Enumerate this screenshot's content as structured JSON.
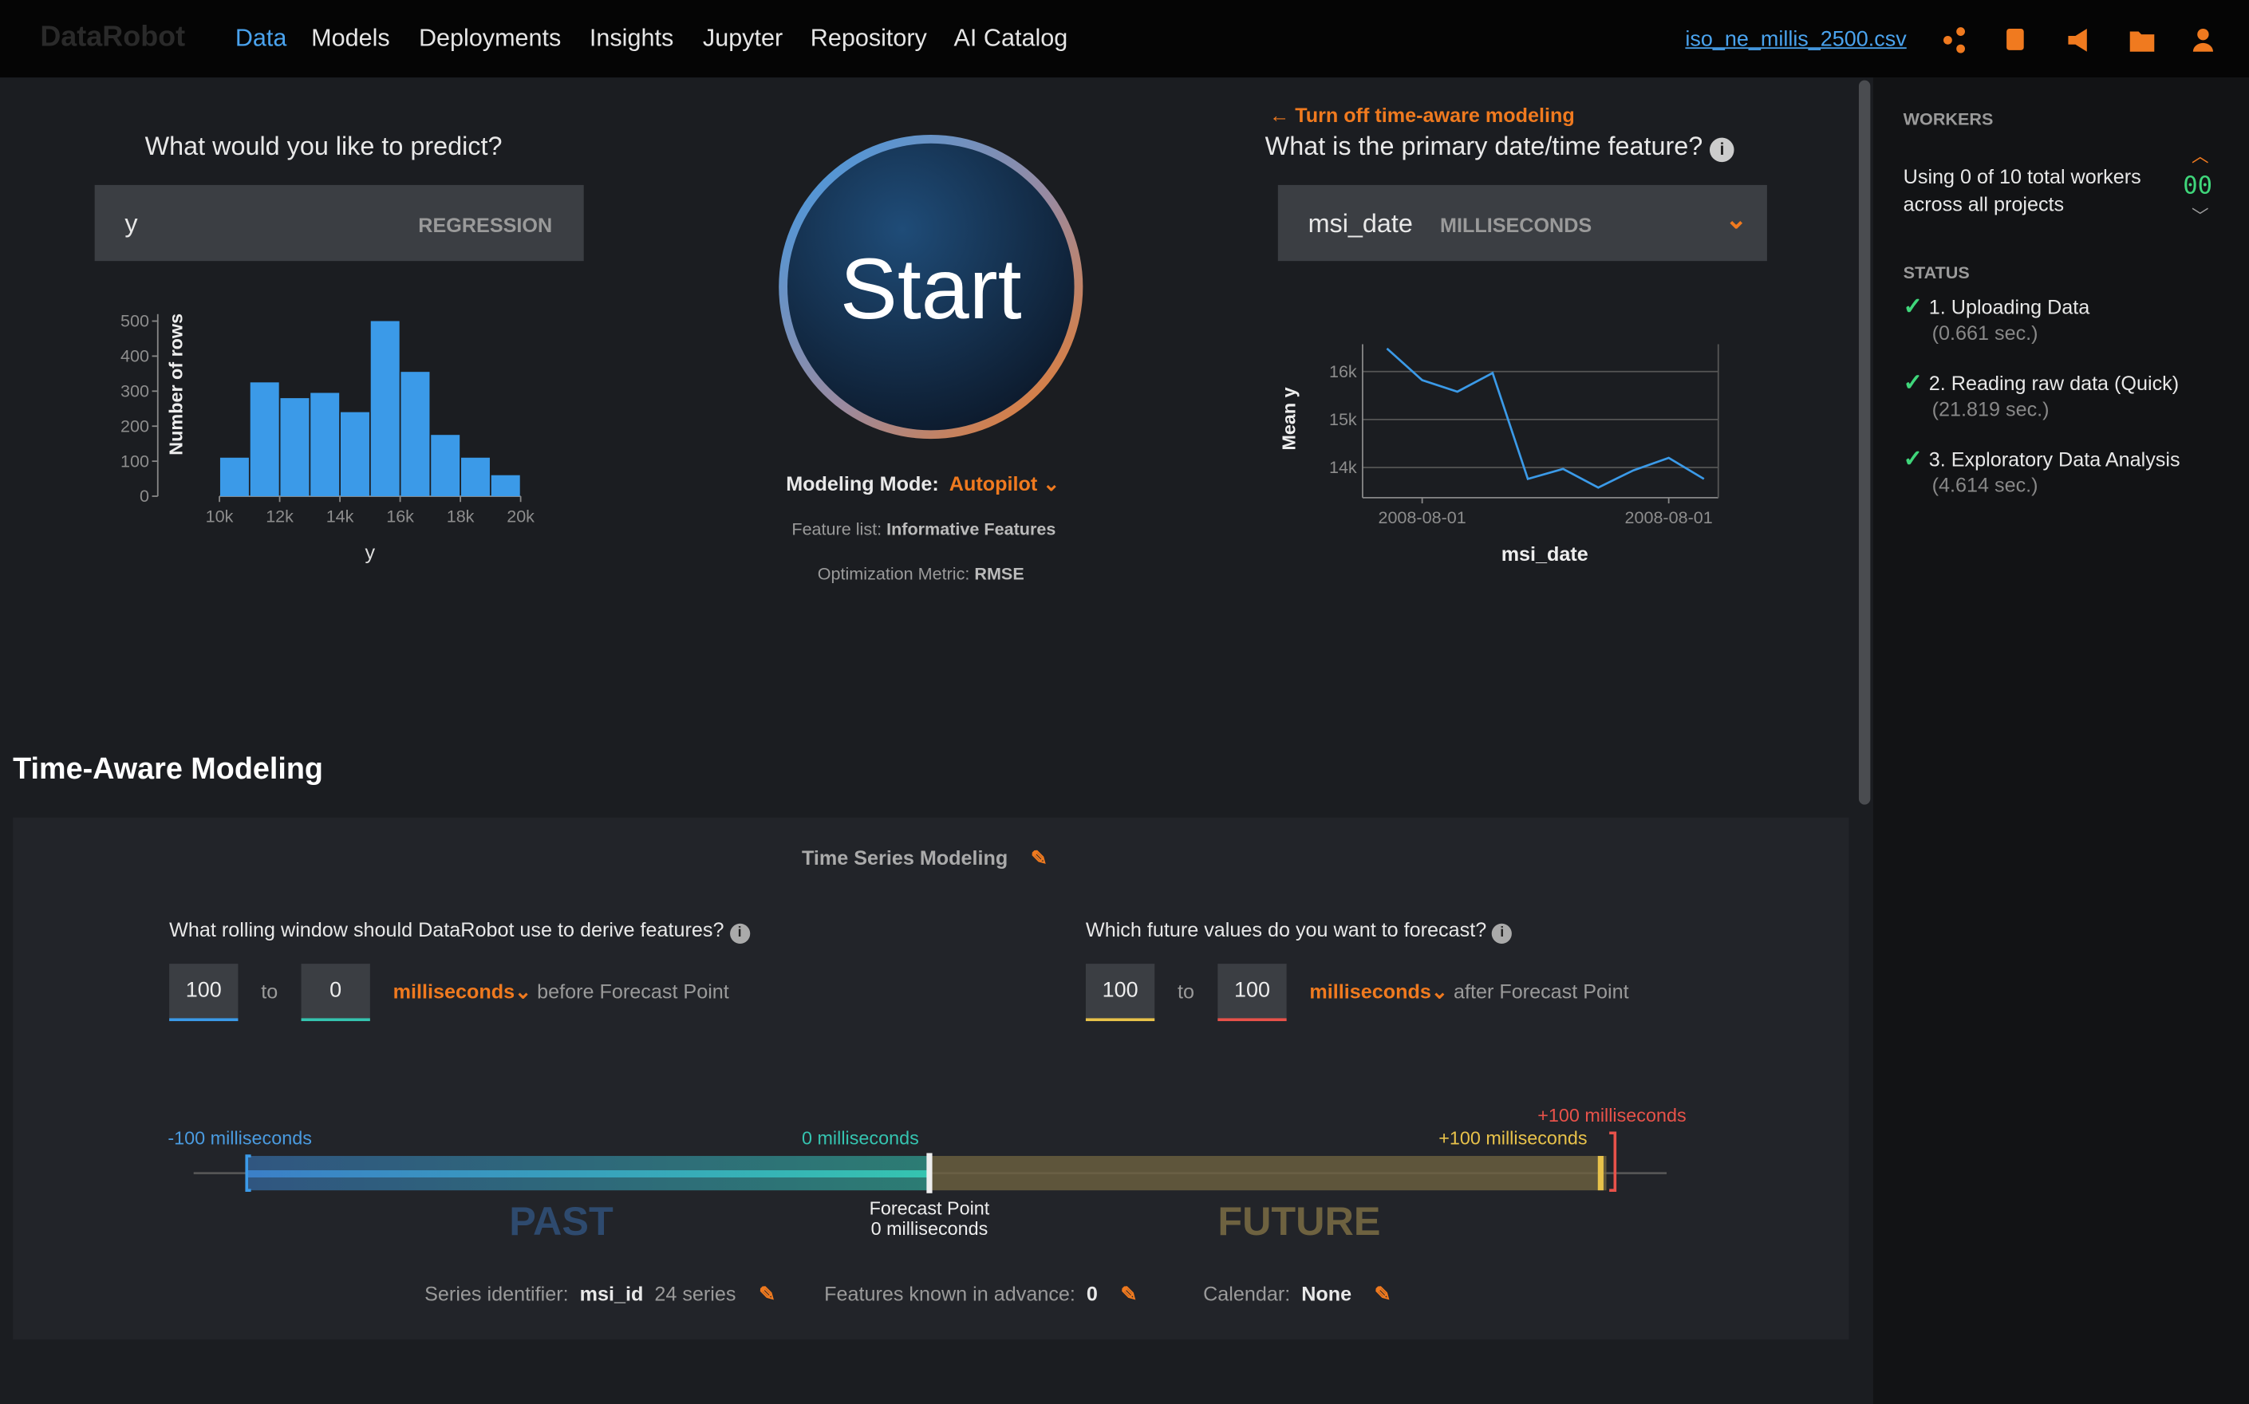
{
  "nav": {
    "logo": "DataRobot",
    "items": [
      "Data",
      "Models",
      "Deployments",
      "Insights",
      "Jupyter",
      "Repository",
      "AI Catalog"
    ],
    "file": "iso_ne_millis_2500.csv"
  },
  "target": {
    "question": "What would you like to predict?",
    "value": "y",
    "kind": "REGRESSION"
  },
  "start": {
    "label": "Start",
    "mode_label": "Modeling Mode:",
    "mode": "Autopilot",
    "feature_list_label": "Feature list:",
    "feature_list": "Informative Features",
    "metric_label": "Optimization Metric:",
    "metric": "RMSE"
  },
  "datetime": {
    "turn_off": "Turn off time-aware modeling",
    "question": "What is the primary date/time feature?",
    "value": "msi_date",
    "unit": "MILLISECONDS"
  },
  "chart_data": [
    {
      "type": "histogram",
      "x_label": "y",
      "y_label": "Number of rows",
      "color": "#3b9ae8",
      "bins": [
        10000,
        11000,
        12000,
        13000,
        14000,
        15000,
        16000,
        17000,
        18000,
        19000,
        20000
      ],
      "values": [
        110,
        325,
        280,
        295,
        240,
        500,
        355,
        175,
        110,
        60
      ],
      "xlim": [
        10000,
        20000
      ],
      "xticks": [
        {
          "value": 10000,
          "label": "10k"
        },
        {
          "value": 12000,
          "label": "12k"
        },
        {
          "value": 14000,
          "label": "14k"
        },
        {
          "value": 16000,
          "label": "16k"
        },
        {
          "value": 18000,
          "label": "18k"
        },
        {
          "value": 20000,
          "label": "20k"
        }
      ],
      "ylim": [
        0,
        520
      ],
      "yticks": [
        0,
        100,
        200,
        300,
        400,
        500
      ]
    },
    {
      "type": "line",
      "x_label": "msi_date",
      "y_label": "Mean y",
      "color": "#3b9ae8",
      "categories": [
        null,
        "2008-08-01",
        null,
        null,
        null,
        null,
        null,
        null,
        "2008-08-01",
        null
      ],
      "values": [
        16480,
        15820,
        15580,
        15970,
        13760,
        13970,
        13580,
        13940,
        14200,
        13760
      ],
      "ylim": [
        13370,
        16570
      ],
      "yticks": [
        {
          "value": 14000,
          "label": "14k"
        },
        {
          "value": 15000,
          "label": "15k"
        },
        {
          "value": 16000,
          "label": "16k"
        }
      ],
      "grid": true
    }
  ],
  "time_aware": {
    "title": "Time-Aware Modeling",
    "subtitle": "Time Series Modeling",
    "rolling": {
      "question": "What rolling window should DataRobot use to derive features?",
      "from": 100,
      "to_word": "to",
      "to": 0,
      "unit": "milliseconds",
      "suffix": "before Forecast Point"
    },
    "forecast": {
      "question": "Which future values do you want to forecast?",
      "from": 100,
      "to_word": "to",
      "to": 100,
      "unit": "milliseconds",
      "suffix": "after Forecast Point"
    },
    "timeline": {
      "start": "-100 milliseconds",
      "zero": "0 milliseconds",
      "end_inner": "+100 milliseconds",
      "end_outer": "+100 milliseconds",
      "past": "PAST",
      "future": "FUTURE",
      "forecast_point": "Forecast Point",
      "forecast_point_value": "0 milliseconds"
    },
    "footer": {
      "series_label": "Series identifier:",
      "series": "msi_id",
      "series_count": "24 series",
      "known_label": "Features known in advance:",
      "known": "0",
      "calendar_label": "Calendar:",
      "calendar": "None"
    }
  },
  "sidebar": {
    "workers_title": "WORKERS",
    "workers_text": "Using 0 of 10 total workers across all projects",
    "workers_count": "00",
    "status_title": "STATUS",
    "steps": [
      {
        "label": "1. Uploading Data",
        "time": "(0.661 sec.)"
      },
      {
        "label": "2. Reading raw data (Quick)",
        "time": "(21.819 sec.)"
      },
      {
        "label": "3. Exploratory Data Analysis",
        "time": "(4.614 sec.)"
      }
    ]
  }
}
